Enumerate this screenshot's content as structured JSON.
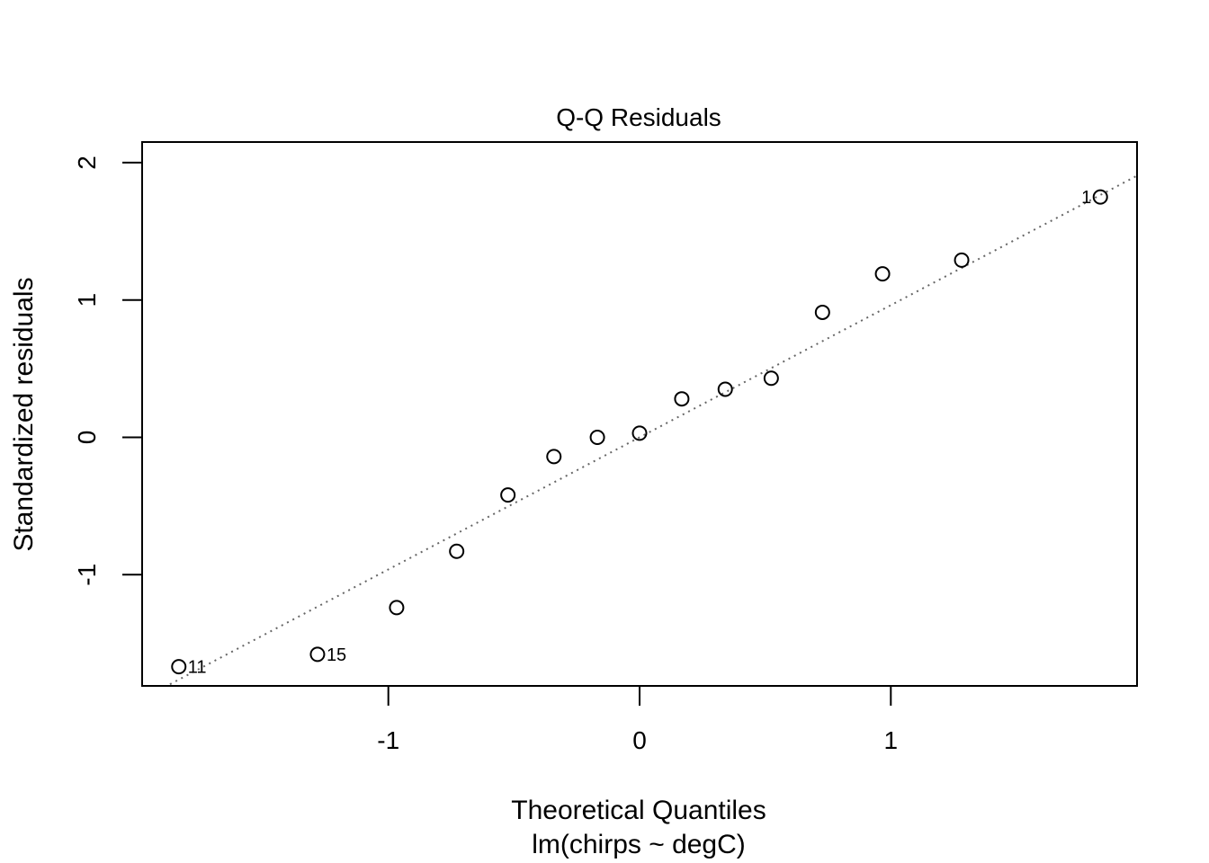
{
  "chart_data": {
    "type": "scatter",
    "title": "Q-Q Residuals",
    "xlabel": "Theoretical Quantiles",
    "subtitle": "lm(chirps ~ degC)",
    "ylabel": "Standardized residuals",
    "xlim": [
      -1.98,
      1.98
    ],
    "ylim": [
      -1.81,
      2.15
    ],
    "x_ticks": [
      -1,
      0,
      1
    ],
    "x_tick_labels": [
      "-1",
      "0",
      "1"
    ],
    "y_ticks": [
      -1,
      0,
      1,
      2
    ],
    "y_tick_labels": [
      "-1",
      "0",
      "1",
      "2"
    ],
    "grid": false,
    "reference_line": {
      "style": "dotted",
      "color": "#666666",
      "slope": 0.962,
      "intercept": 0.0
    },
    "points": [
      {
        "x": -1.834,
        "y": -1.67,
        "label": "11"
      },
      {
        "x": -1.282,
        "y": -1.58,
        "label": "15"
      },
      {
        "x": -0.967,
        "y": -1.24
      },
      {
        "x": -0.728,
        "y": -0.83
      },
      {
        "x": -0.524,
        "y": -0.42
      },
      {
        "x": -0.341,
        "y": -0.14
      },
      {
        "x": -0.168,
        "y": 0.0
      },
      {
        "x": 0.0,
        "y": 0.03
      },
      {
        "x": 0.168,
        "y": 0.28
      },
      {
        "x": 0.341,
        "y": 0.35
      },
      {
        "x": 0.524,
        "y": 0.43
      },
      {
        "x": 0.728,
        "y": 0.91
      },
      {
        "x": 0.967,
        "y": 1.19
      },
      {
        "x": 1.282,
        "y": 1.29
      },
      {
        "x": 1.834,
        "y": 1.75,
        "label": "1"
      }
    ]
  }
}
